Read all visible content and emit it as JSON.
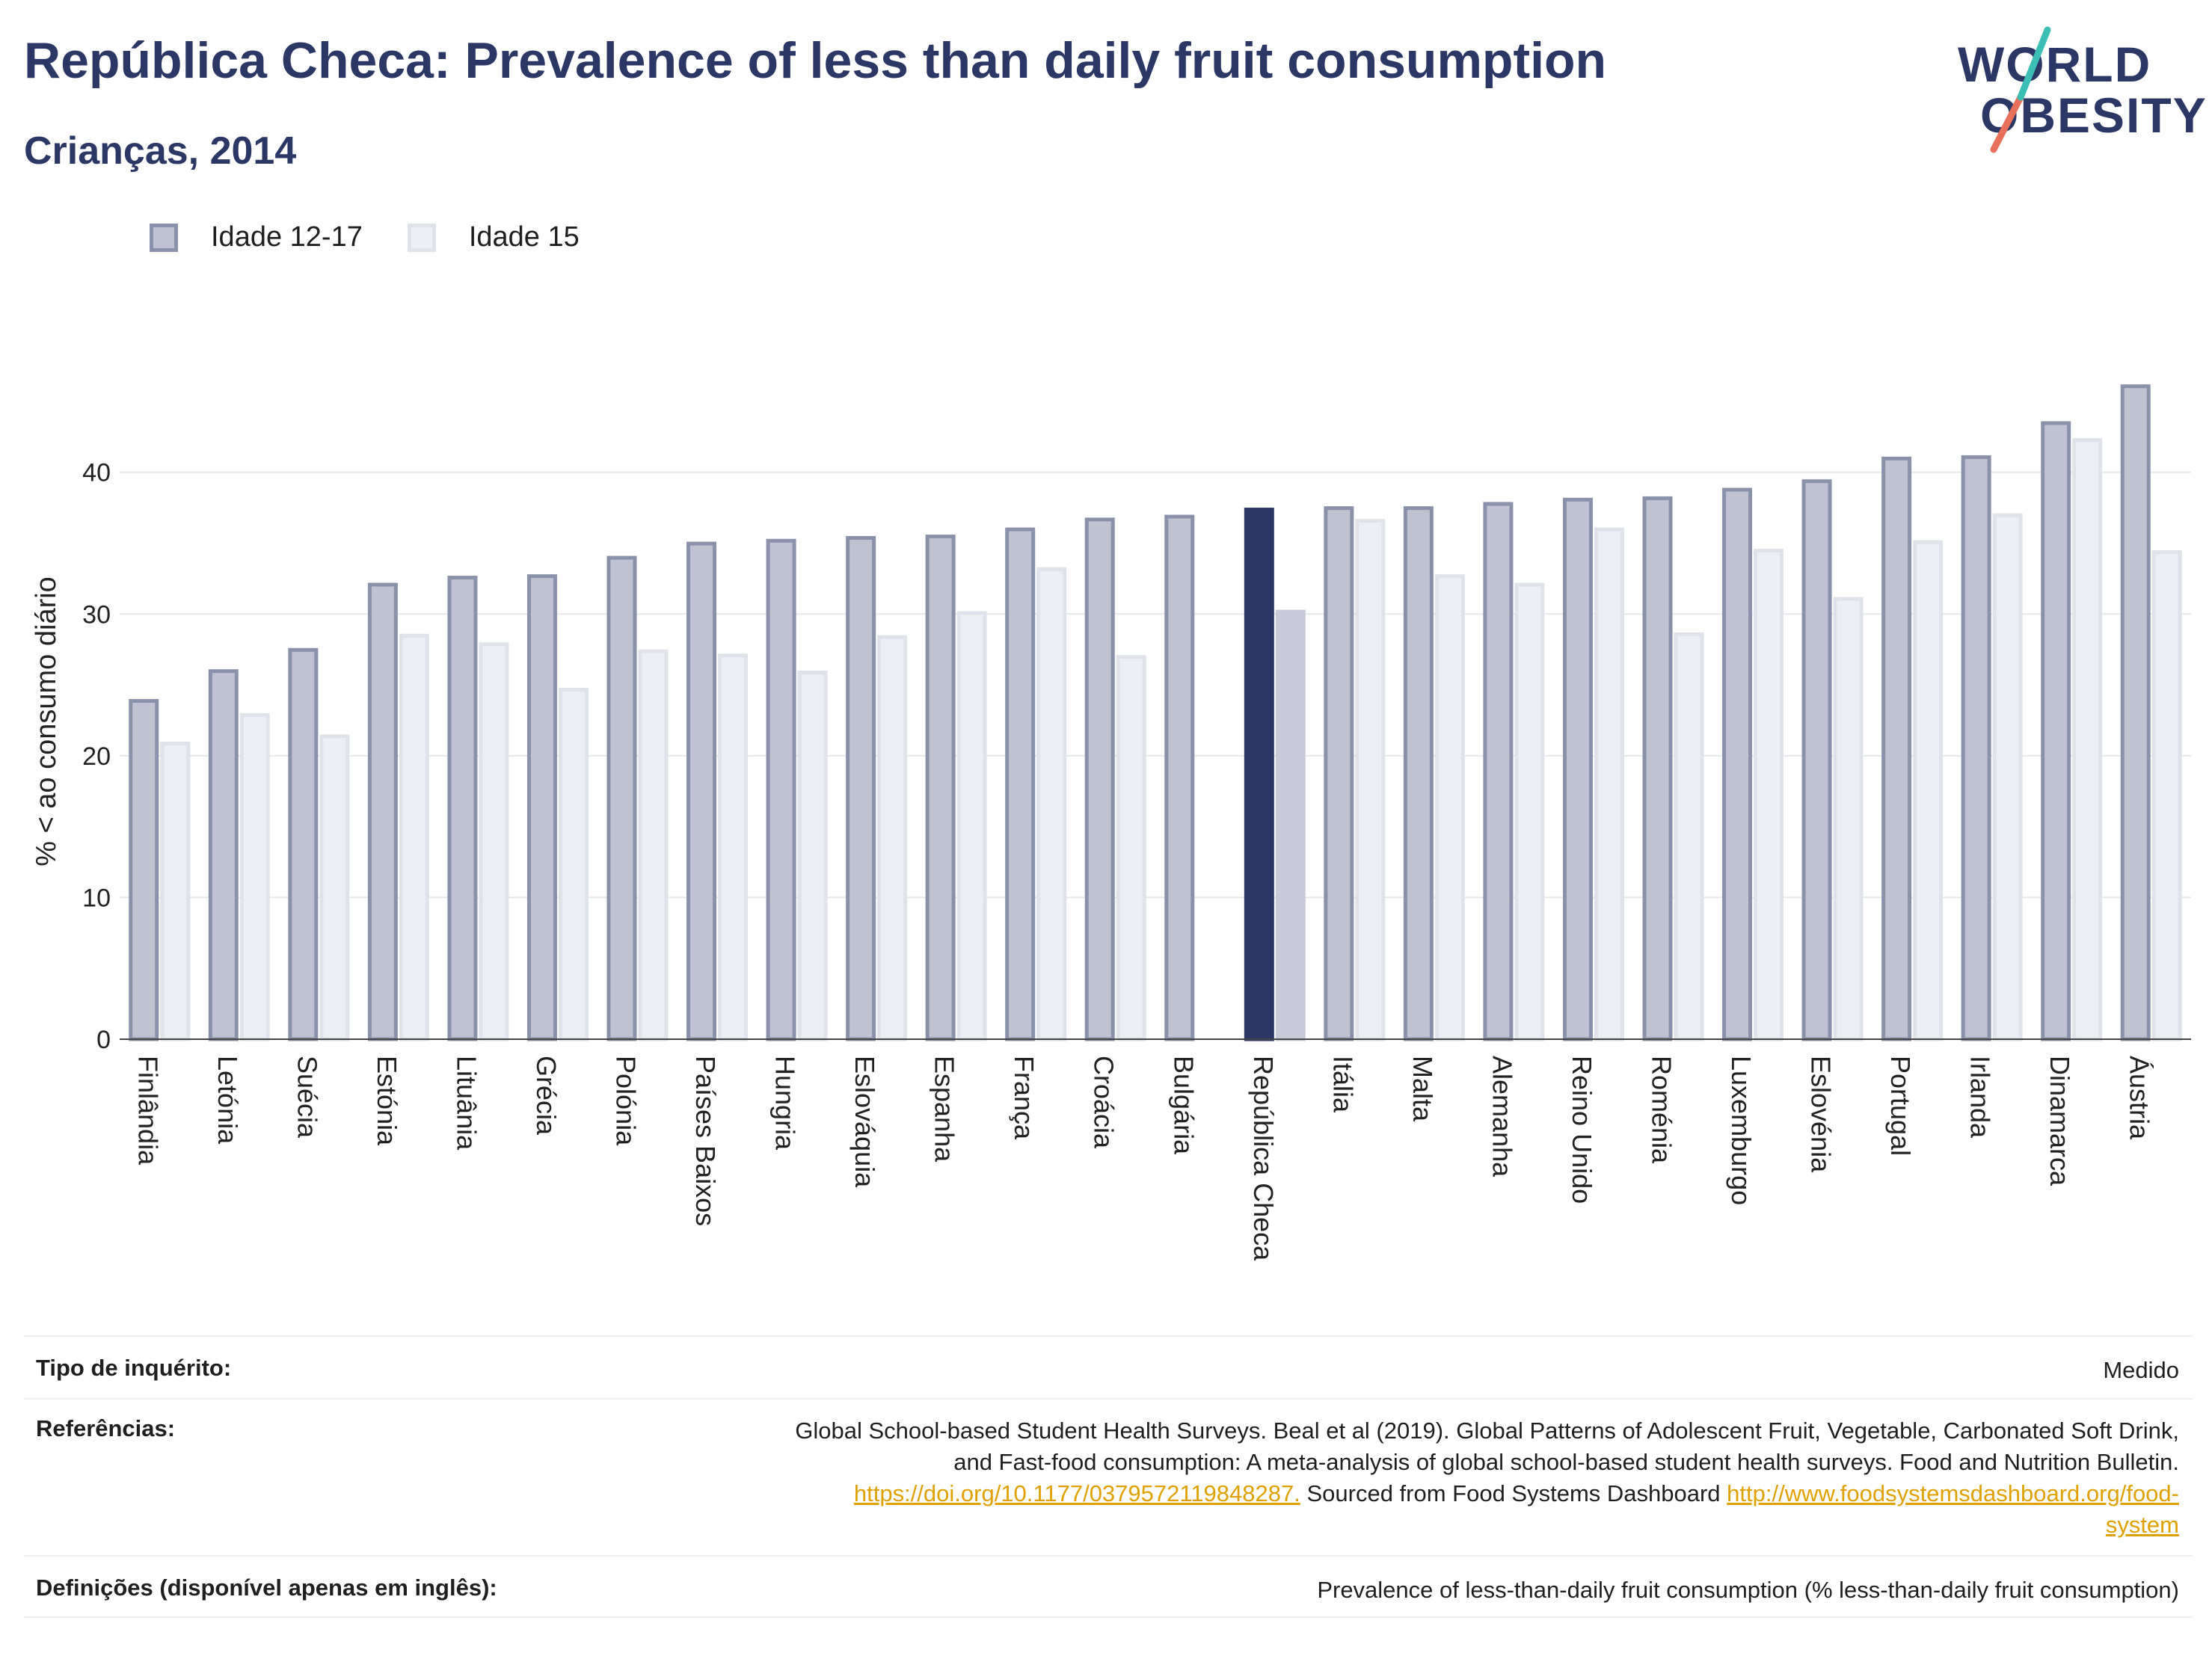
{
  "header": {
    "title": "República Checa: Prevalence of less than daily fruit consumption",
    "subtitle": "Crianças, 2014"
  },
  "logo": {
    "line1": "WORLD",
    "line2": "OBESITY"
  },
  "colors": {
    "highlight_primary": "#2b3765",
    "highlight_secondary": "#c9ccd8",
    "series1_fill": "#bfc3d1",
    "series1_stroke": "#8a91ab",
    "series2_fill": "#eceef3",
    "series2_stroke": "#e0e2ea",
    "link": "#e0a100"
  },
  "chart_data": {
    "type": "bar",
    "title": "República Checa: Prevalence of less than daily fruit consumption",
    "subtitle": "Crianças, 2014",
    "ylabel": "% < ao consumo diário",
    "xlabel": "",
    "ylim": [
      0,
      48
    ],
    "yticks": [
      0,
      10,
      20,
      30,
      40
    ],
    "grid": true,
    "legend_position": "top-left",
    "highlight_category": "República Checa",
    "categories": [
      "Finlândia",
      "Letónia",
      "Suécia",
      "Estónia",
      "Lituânia",
      "Grécia",
      "Polónia",
      "Países Baixos",
      "Hungria",
      "Eslováquia",
      "Espanha",
      "França",
      "Croácia",
      "Bulgária",
      "República Checa",
      "Itália",
      "Malta",
      "Alemanha",
      "Reino Unido",
      "Roménia",
      "Luxemburgo",
      "Eslovénia",
      "Portugal",
      "Irlanda",
      "Dinamarca",
      "Áustria"
    ],
    "series": [
      {
        "name": "Idade 12-17",
        "values": [
          24.0,
          26.1,
          27.6,
          32.2,
          32.7,
          32.8,
          34.1,
          35.1,
          35.3,
          35.5,
          35.6,
          36.1,
          36.8,
          37.0,
          37.5,
          37.6,
          37.6,
          37.9,
          38.2,
          38.3,
          38.9,
          39.5,
          41.1,
          41.2,
          43.6,
          46.2
        ]
      },
      {
        "name": "Idade 15",
        "values": [
          21.0,
          23.0,
          21.5,
          28.6,
          28.0,
          24.8,
          27.5,
          27.2,
          26.0,
          28.5,
          30.2,
          33.3,
          27.1,
          null,
          30.3,
          36.7,
          32.8,
          32.2,
          36.1,
          28.7,
          34.6,
          31.2,
          35.2,
          37.1,
          42.4,
          34.5
        ]
      }
    ]
  },
  "info": {
    "survey_label": "Tipo de inquérito:",
    "survey_value": "Medido",
    "refs_label": "Referências:",
    "refs_line1": "Global School-based Student Health Surveys. Beal et al (2019). Global Patterns of Adolescent Fruit, Vegetable, Carbonated Soft Drink,",
    "refs_line2": "and Fast-food consumption: A meta-analysis of global school-based student health surveys. Food and Nutrition Bulletin.",
    "refs_link1": "https://doi.org/10.1177/0379572119848287.",
    "refs_line3_text": " Sourced from Food Systems Dashboard ",
    "refs_link2a": "http://www.foodsystemsdashboard.org/food-",
    "refs_link2b": "system",
    "defs_label": "Definições (disponível apenas em inglês):",
    "defs_value": "Prevalence of less-than-daily fruit consumption (% less-than-daily fruit consumption)"
  }
}
